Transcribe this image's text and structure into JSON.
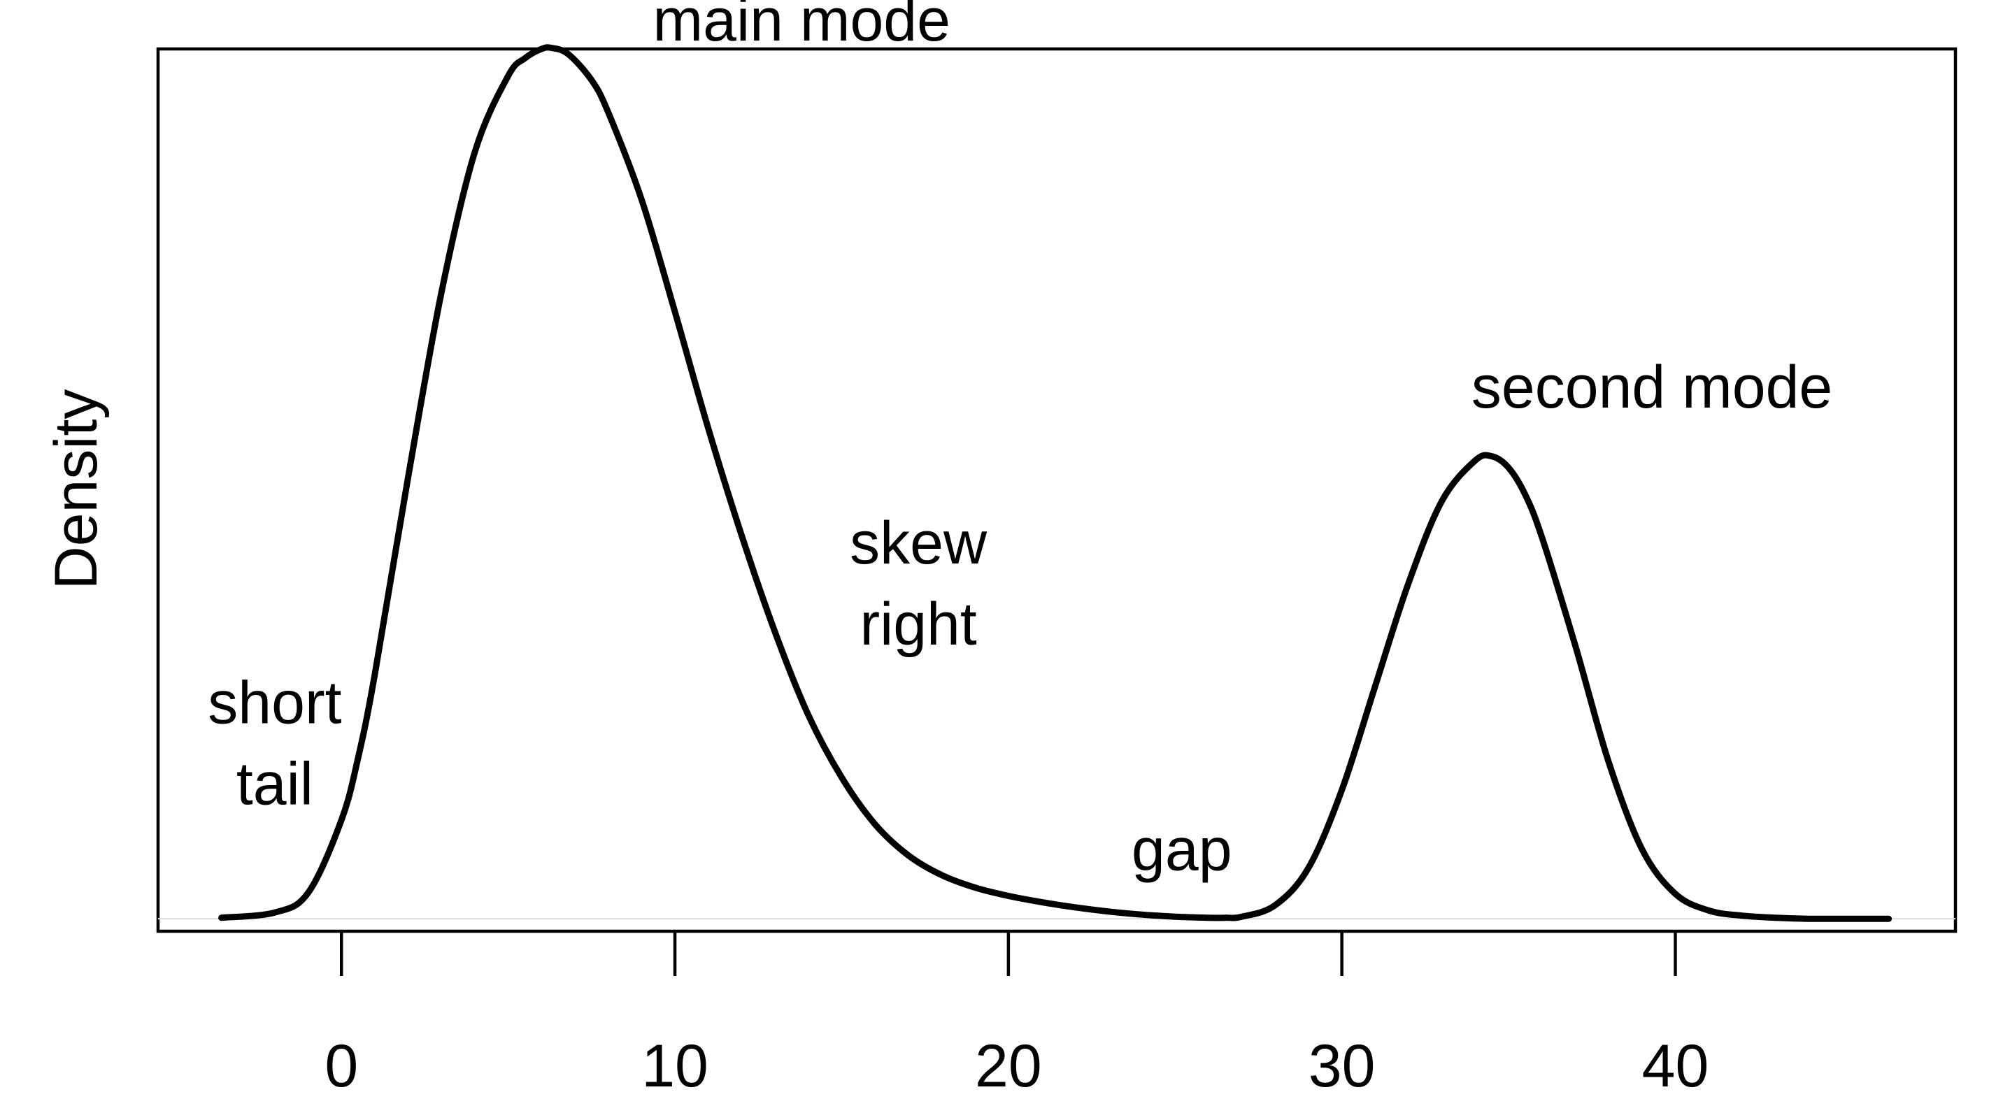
{
  "chart_data": {
    "type": "line",
    "title": "",
    "xlabel": "",
    "ylabel": "Density",
    "xlim": [
      -5.5,
      48.4
    ],
    "ylim": [
      -0.0012,
      0.0837
    ],
    "x_ticks": [
      "0",
      "10",
      "20",
      "30",
      "40"
    ],
    "x_tick_values": [
      0,
      10,
      20,
      30,
      40
    ],
    "y_ticks_shown": false,
    "grid": false,
    "baseline_y": 0,
    "series": [
      {
        "x": [
          -3.6,
          -2,
          -1,
          0,
          0.5,
          1,
          2,
          3,
          4,
          5,
          5.5,
          6,
          6.3,
          6.8,
          7.5,
          8,
          9,
          10,
          11,
          12,
          13,
          14,
          15,
          16,
          17,
          18,
          19,
          20,
          21,
          22,
          23,
          24,
          25,
          26,
          26.5,
          27,
          28,
          29,
          30,
          31,
          32,
          33,
          34,
          34.5,
          35,
          35.5,
          36,
          37,
          38,
          39,
          40,
          41,
          42,
          43,
          44,
          45,
          46.4
        ],
        "y": [
          0.0001,
          0.0006,
          0.0025,
          0.0095,
          0.0155,
          0.0235,
          0.0425,
          0.0603,
          0.0738,
          0.0811,
          0.0828,
          0.0837,
          0.0838,
          0.0832,
          0.0807,
          0.0776,
          0.0692,
          0.0584,
          0.0472,
          0.0369,
          0.0276,
          0.0196,
          0.0136,
          0.0091,
          0.0061,
          0.0042,
          0.003,
          0.0022,
          0.0016,
          0.0011,
          0.0007,
          0.0004,
          0.0002,
          0.0001,
          0.0001,
          0.0002,
          0.0013,
          0.0049,
          0.0124,
          0.0224,
          0.0323,
          0.0402,
          0.0441,
          0.0445,
          0.0434,
          0.0408,
          0.0367,
          0.0263,
          0.0151,
          0.0067,
          0.0024,
          0.0008,
          0.0003,
          0.0001,
          0,
          0,
          0
        ]
      }
    ],
    "annotations": [
      {
        "lines": [
          "main mode"
        ],
        "x": 13.8,
        "y": 0.0845
      },
      {
        "lines": [
          "second mode"
        ],
        "x": 39.3,
        "y": 0.0492
      },
      {
        "lines": [
          "skew",
          "right"
        ],
        "x": 17.3,
        "y": 0.0342
      },
      {
        "lines": [
          "short",
          "tail"
        ],
        "x": -2,
        "y": 0.0188
      },
      {
        "lines": [
          "gap"
        ],
        "x": 25.2,
        "y": 0.0047
      }
    ]
  }
}
